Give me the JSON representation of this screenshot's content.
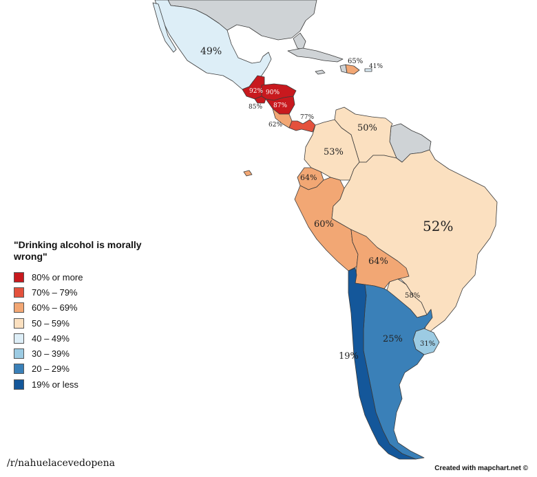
{
  "legend": {
    "title": "\"Drinking alcohol is morally wrong\"",
    "items": [
      {
        "label": "80% or more",
        "color": "#c8191e"
      },
      {
        "label": "70% – 79%",
        "color": "#e4513c"
      },
      {
        "label": "60% – 69%",
        "color": "#f2a774"
      },
      {
        "label": "50 – 59%",
        "color": "#fbe0c0"
      },
      {
        "label": "40 – 49%",
        "color": "#ddeef7"
      },
      {
        "label": "30 – 39%",
        "color": "#9ccbe3"
      },
      {
        "label": "20 – 29%",
        "color": "#3a80b8"
      },
      {
        "label": "19% or less",
        "color": "#14579a"
      }
    ]
  },
  "colors": {
    "no_data": "#cfd3d6",
    "border": "#3a3a3a"
  },
  "values": {
    "mexico": "49%",
    "guatemala": "92%",
    "honduras": "90%",
    "el_salvador": "85%",
    "nicaragua": "87%",
    "costa_rica": "62%",
    "panama": "77%",
    "cuba": "",
    "dominican_republic": "65%",
    "puerto_rico": "41%",
    "venezuela": "50%",
    "colombia": "53%",
    "ecuador": "64%",
    "peru": "60%",
    "bolivia": "64%",
    "brazil": "52%",
    "paraguay": "58%",
    "uruguay": "31%",
    "argentina": "25%",
    "chile": "19%"
  },
  "credits": {
    "left": "/r/nahuelacevedopena",
    "right": "Created with mapchart.net ©"
  }
}
